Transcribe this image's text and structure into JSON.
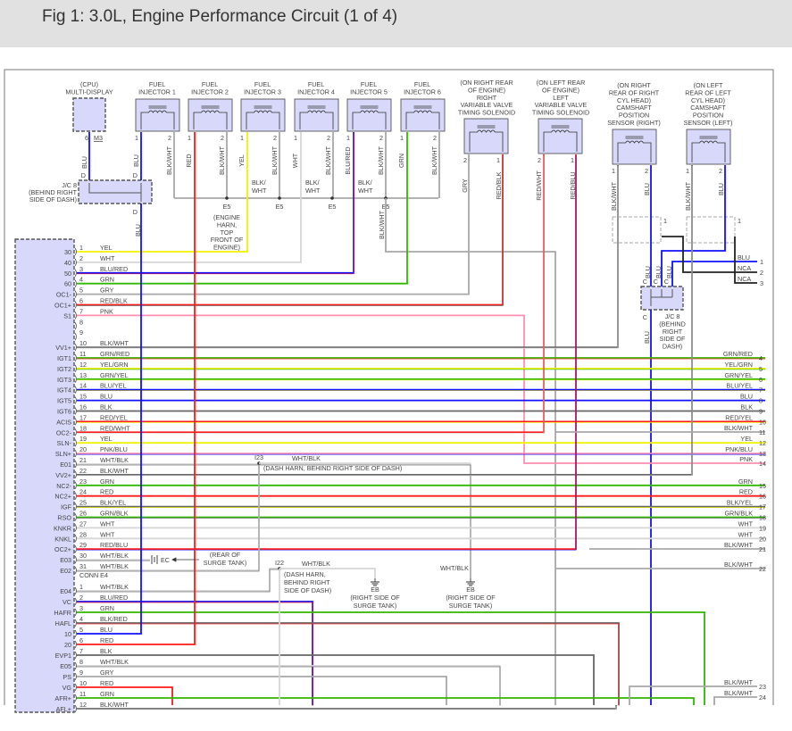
{
  "title": "Fig 1: 3.0L, Engine Performance Circuit (1 of 4)",
  "wire_colors": {
    "YEL": "#f2f200",
    "WHT": "#d6d6d6",
    "BLU": "#1010ff",
    "GRN": "#30b800",
    "GRY": "#a8a8a8",
    "RED": "#ff1a1a",
    "PNK": "#ff8fb0",
    "BLK": "#666666",
    "NCA": "#222222"
  },
  "multi_display": {
    "lines": [
      "(CPU)",
      "MULTI-DISPLAY"
    ],
    "pin": "6",
    "conn": "M3",
    "wire": "BLU"
  },
  "jc8_left": {
    "lines": [
      "J/C 8",
      "(BEHIND RIGHT",
      "SIDE OF DASH)"
    ],
    "pin": "D",
    "wire_out": "BLU"
  },
  "injectors": [
    {
      "lines": [
        "FUEL",
        "INJECTOR 1"
      ],
      "pin1": "1",
      "pin2": "2",
      "wire1": "BLU",
      "wire2": "BLK/WHT"
    },
    {
      "lines": [
        "FUEL",
        "INJECTOR 2"
      ],
      "pin1": "1",
      "pin2": "2",
      "wire1": "RED",
      "wire2": "BLK/WHT"
    },
    {
      "lines": [
        "FUEL",
        "INJECTOR 3"
      ],
      "pin1": "1",
      "pin2": "2",
      "wire1": "YEL",
      "wire2": "BLK/WHT"
    },
    {
      "lines": [
        "FUEL",
        "INJECTOR 4"
      ],
      "pin1": "1",
      "pin2": "2",
      "wire1": "WHT",
      "wire2": "BLK/WHT"
    },
    {
      "lines": [
        "FUEL",
        "INJECTOR 5"
      ],
      "pin1": "1",
      "pin2": "2",
      "wire1": "BLU/RED",
      "wire2": "BLK/WHT"
    },
    {
      "lines": [
        "FUEL",
        "INJECTOR 6"
      ],
      "pin1": "1",
      "pin2": "2",
      "wire1": "GRN",
      "wire2": "BLK/WHT"
    }
  ],
  "e5_splices": {
    "label": "E5",
    "wire": "BLK/WHT",
    "desc": [
      "(ENGINE",
      "HARN,",
      "TOP",
      "FRONT OF",
      "ENGINE)"
    ],
    "bus_labels": [
      "BLK/",
      "WHT"
    ],
    "drop_wire": "BLK/WHT"
  },
  "vvt_solenoids": [
    {
      "lines": [
        "(ON RIGHT REAR",
        "OF ENGINE)",
        "RIGHT",
        "VARIABLE VALVE",
        "TIMING SOLENOID"
      ],
      "pinL": "2",
      "pinR": "1",
      "wireL": "GRY",
      "wireR": "RED/BLK"
    },
    {
      "lines": [
        "(ON LEFT REAR",
        "OF ENGINE)",
        "LEFT",
        "VARIABLE VALVE",
        "TIMING SOLENOID"
      ],
      "pinL": "2",
      "pinR": "1",
      "wireL": "RED/WHT",
      "wireR": "RED/BLU"
    }
  ],
  "cam_sensors": [
    {
      "lines": [
        "(ON RIGHT",
        "REAR OF RIGHT",
        "CYL HEAD)",
        "CAMSHAFT",
        "POSITION",
        "SENSOR (RIGHT)"
      ],
      "pinL": "1",
      "pinR": "2",
      "wireL": "BLK/WHT",
      "wireR": "BLU"
    },
    {
      "lines": [
        "(ON LEFT",
        "REAR OF LEFT",
        "CYL HEAD)",
        "CAMSHAFT",
        "POSITION",
        "SENSOR (LEFT)"
      ],
      "pinL": "1",
      "pinR": "2",
      "wireL": "BLK/WHT",
      "wireR": "BLU"
    }
  ],
  "shield_pin": "1",
  "jc8_right": {
    "lines": [
      "J/C 8",
      "(BEHIND",
      "RIGHT",
      "SIDE OF",
      "DASH)"
    ],
    "pin": "C",
    "wires_in": [
      "BLU",
      "BLU",
      "BLU"
    ],
    "wire_out": "BLU"
  },
  "shield_terminals": [
    {
      "num": "1",
      "wire": "BLU"
    },
    {
      "num": "2",
      "wire": "NCA"
    },
    {
      "num": "3",
      "wire": "NCA"
    }
  ],
  "ecm_conn_a": [
    {
      "num": "1",
      "func": "30",
      "wire": "YEL"
    },
    {
      "num": "2",
      "func": "40",
      "wire": "WHT"
    },
    {
      "num": "3",
      "func": "50",
      "wire": "BLU/RED"
    },
    {
      "num": "4",
      "func": "60",
      "wire": "GRN"
    },
    {
      "num": "5",
      "func": "OC1-",
      "wire": "GRY"
    },
    {
      "num": "6",
      "func": "OC1+",
      "wire": "RED/BLK"
    },
    {
      "num": "7",
      "func": "S1",
      "wire": "PNK"
    },
    {
      "num": "8",
      "func": "",
      "wire": ""
    },
    {
      "num": "9",
      "func": "",
      "wire": ""
    },
    {
      "num": "10",
      "func": "VV1+",
      "wire": "BLK/WHT"
    },
    {
      "num": "11",
      "func": "IGT1",
      "wire": "GRN/RED",
      "to": "4"
    },
    {
      "num": "12",
      "func": "IGT2",
      "wire": "YEL/GRN",
      "to": "5"
    },
    {
      "num": "13",
      "func": "IGT3",
      "wire": "GRN/YEL",
      "to": "6"
    },
    {
      "num": "14",
      "func": "IGT4",
      "wire": "BLU/YEL",
      "to": "7"
    },
    {
      "num": "15",
      "func": "IGT5",
      "wire": "BLU",
      "to": "8"
    },
    {
      "num": "16",
      "func": "IGT6",
      "wire": "BLK",
      "to": "9"
    },
    {
      "num": "17",
      "func": "ACIS",
      "wire": "RED/YEL",
      "to": "10"
    },
    {
      "num": "18",
      "func": "OC2-",
      "wire": "RED/WHT"
    },
    {
      "num": "19",
      "func": "SLN-",
      "wire": "YEL",
      "to": "12"
    },
    {
      "num": "20",
      "func": "SLN+",
      "wire": "PNK/BLU",
      "to": "13"
    },
    {
      "num": "21",
      "func": "E01",
      "wire": "WHT/BLK"
    },
    {
      "num": "22",
      "func": "VV2+",
      "wire": "BLK/WHT"
    },
    {
      "num": "23",
      "func": "NC2-",
      "wire": "GRN",
      "to": "15"
    },
    {
      "num": "24",
      "func": "NC2+",
      "wire": "RED",
      "to": "16"
    },
    {
      "num": "25",
      "func": "IGF",
      "wire": "BLK/YEL",
      "to": "17"
    },
    {
      "num": "26",
      "func": "RSO",
      "wire": "GRN/BLK",
      "to": "18"
    },
    {
      "num": "27",
      "func": "KNKR",
      "wire": "WHT",
      "to": "19"
    },
    {
      "num": "28",
      "func": "KNKL",
      "wire": "WHT",
      "to": "20"
    },
    {
      "num": "29",
      "func": "OC2+",
      "wire": "RED/BLU"
    },
    {
      "num": "30",
      "func": "E03",
      "wire": "WHT/BLK"
    },
    {
      "num": "31",
      "func": "E02",
      "wire": "WHT/BLK"
    }
  ],
  "conn_e4_label": "CONN E4",
  "ecm_conn_e4": [
    {
      "num": "1",
      "func": "E04",
      "wire": "WHT/BLK"
    },
    {
      "num": "2",
      "func": "VC",
      "wire": "BLU/RED"
    },
    {
      "num": "3",
      "func": "HAFR",
      "wire": "GRN"
    },
    {
      "num": "4",
      "func": "HAFL",
      "wire": "BLK/RED"
    },
    {
      "num": "5",
      "func": "10",
      "wire": "BLU"
    },
    {
      "num": "6",
      "func": "20",
      "wire": "RED"
    },
    {
      "num": "7",
      "func": "EVP1",
      "wire": "BLK"
    },
    {
      "num": "8",
      "func": "E05",
      "wire": "WHT/BLK"
    },
    {
      "num": "9",
      "func": "PS",
      "wire": "GRY"
    },
    {
      "num": "10",
      "func": "VG",
      "wire": "RED"
    },
    {
      "num": "11",
      "func": "AFR+",
      "wire": "GRN"
    },
    {
      "num": "12",
      "func": "AFL+",
      "wire": "BLK/WHT"
    }
  ],
  "right_terminals": [
    {
      "num": "11",
      "wire": "BLK/WHT"
    },
    {
      "num": "14",
      "wire": "PNK"
    },
    {
      "num": "21",
      "wire": "BLK/WHT"
    },
    {
      "num": "22",
      "wire": "BLK/WHT"
    },
    {
      "num": "23",
      "wire": "BLK/WHT"
    },
    {
      "num": "24",
      "wire": "BLK/WHT"
    }
  ],
  "splice_i23": {
    "label": "I23",
    "wire": "WHT/BLK",
    "desc": "(DASH HARN, BEHIND RIGHT SIDE OF DASH)"
  },
  "splice_i22": {
    "label": "I22",
    "wire": "WHT/BLK",
    "desc": [
      "(DASH HARN,",
      "BEHIND RIGHT",
      "SIDE OF DASH)"
    ]
  },
  "ground_ec": {
    "label": "EC",
    "desc": [
      "(REAR OF",
      "SURGE TANK)"
    ]
  },
  "ground_eb1": {
    "label": "EB",
    "desc": [
      "(RIGHT SIDE OF",
      "SURGE TANK)"
    ]
  },
  "ground_eb2": {
    "label": "EB",
    "wire": "WHT/BLK",
    "desc": [
      "(RIGHT SIDE OF",
      "SURGE TANK)"
    ]
  }
}
